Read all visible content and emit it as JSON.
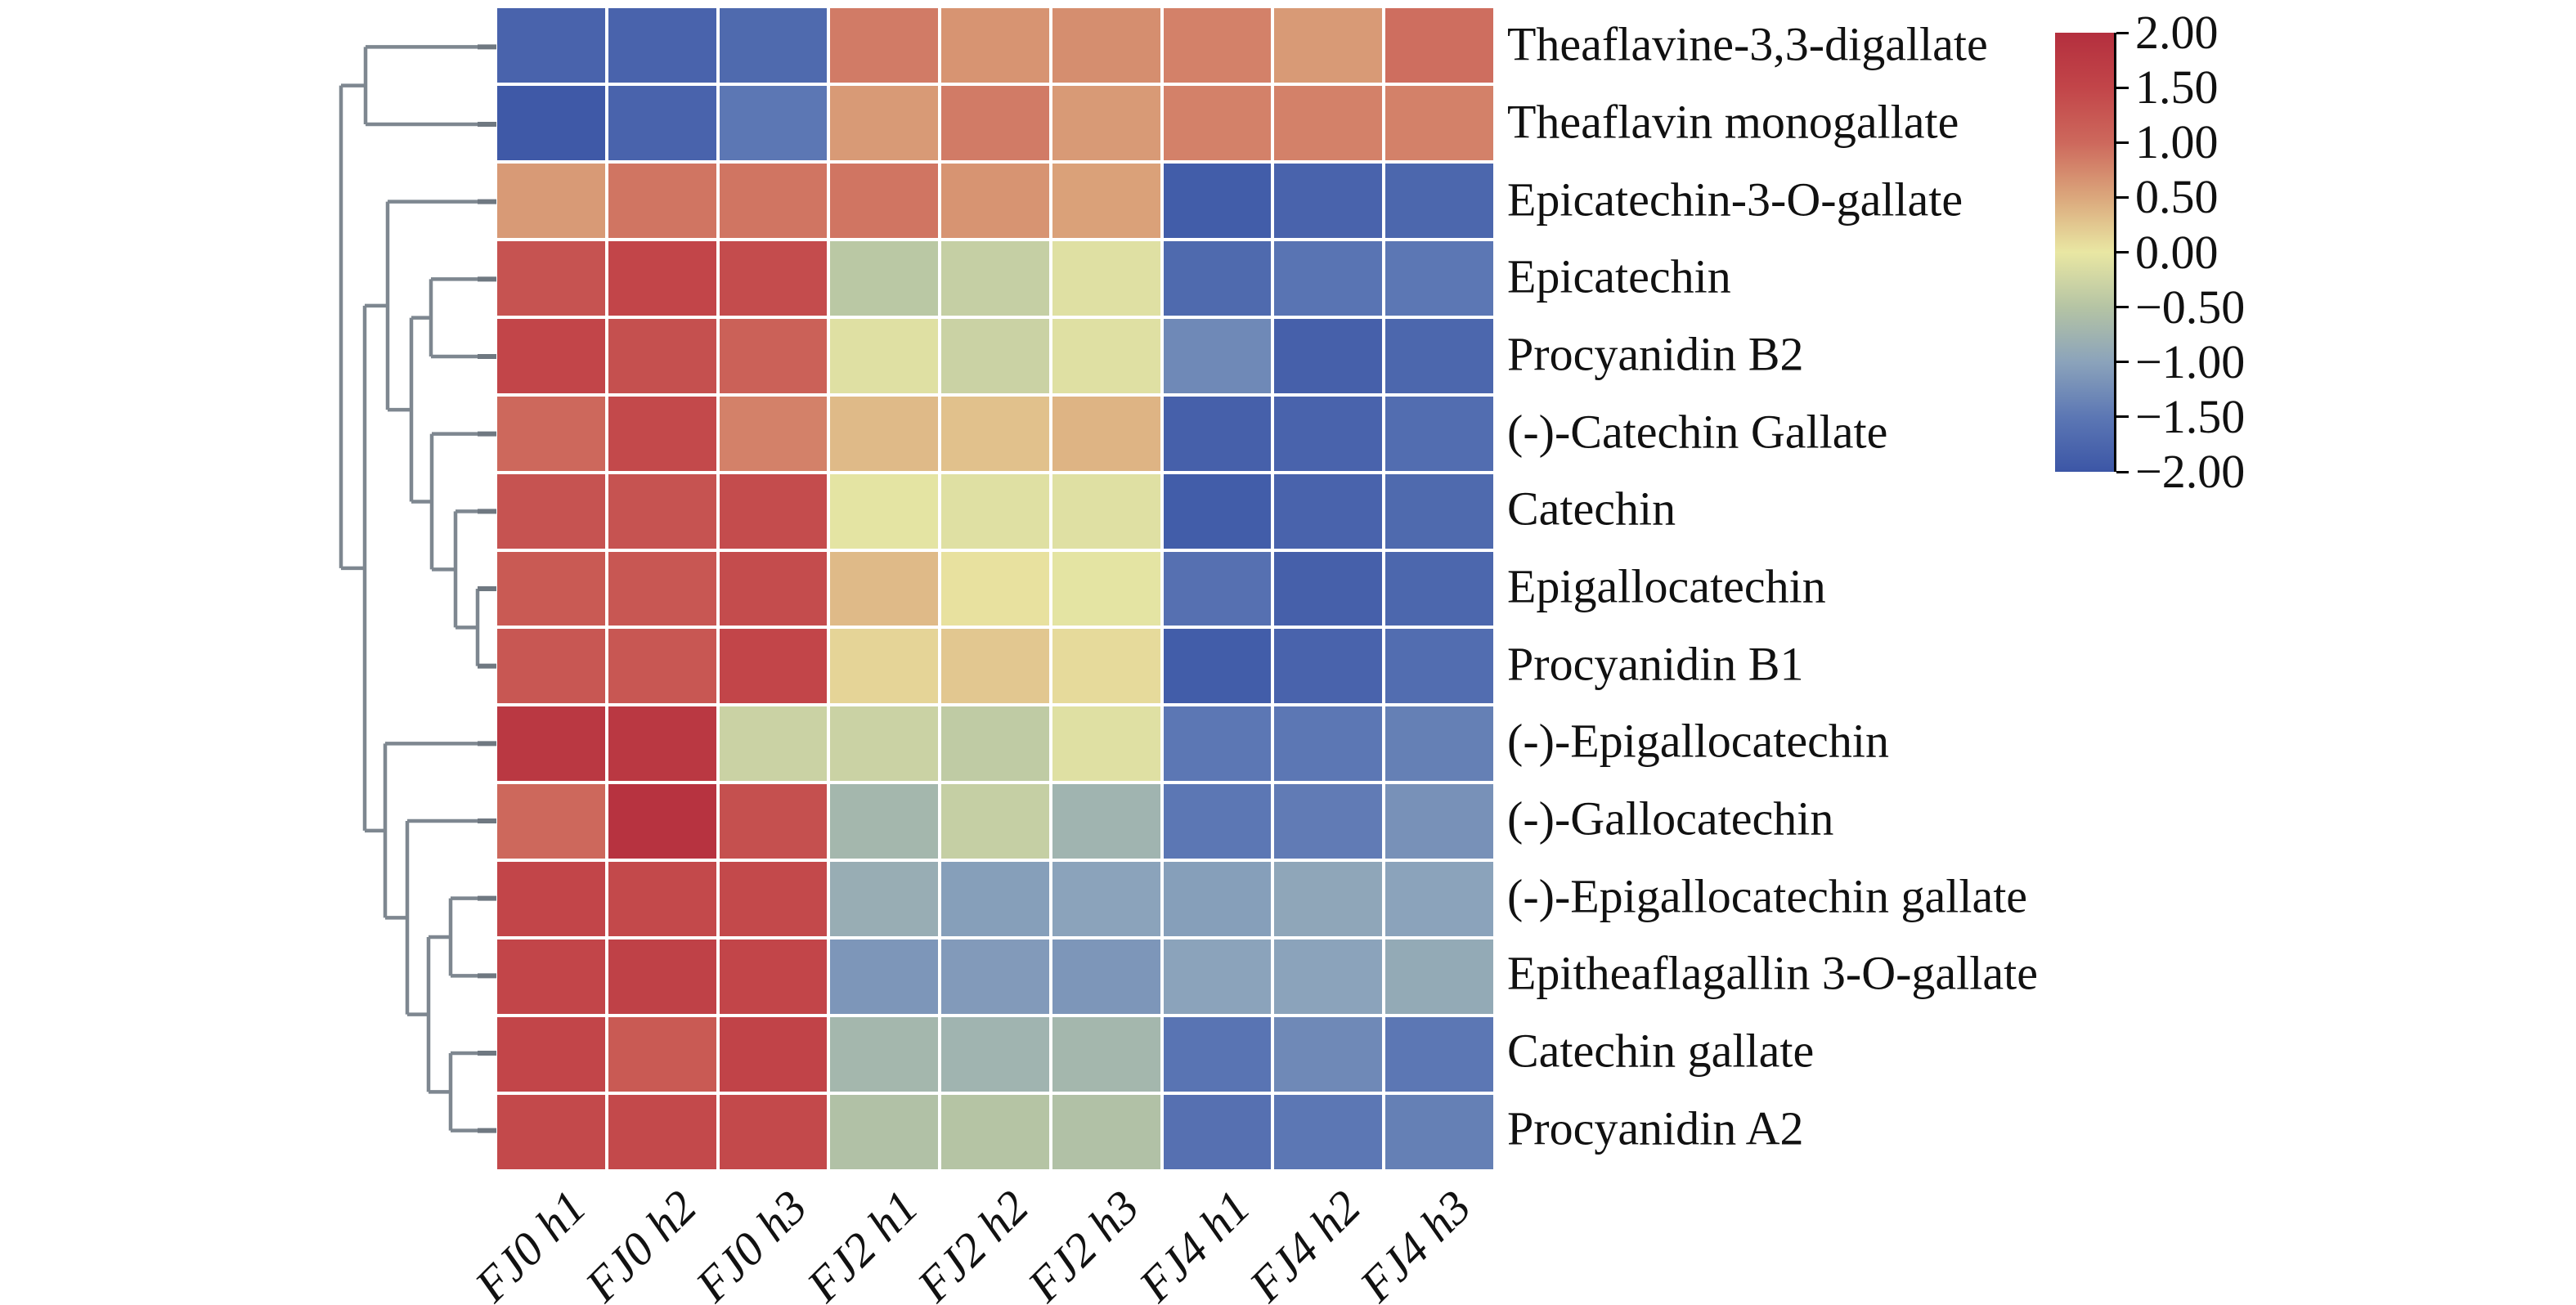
{
  "chart_data": {
    "type": "heatmap",
    "title": "",
    "xlabel": "",
    "ylabel": "",
    "grid": "white gaps between cells",
    "legend_position": "right",
    "columns": [
      "FJ0 h1",
      "FJ0 h2",
      "FJ0 h3",
      "FJ2 h1",
      "FJ2 h2",
      "FJ2 h3",
      "FJ4 h1",
      "FJ4 h2",
      "FJ4 h3"
    ],
    "rows": [
      "Theaflavine-3,3-digallate",
      "Theaflavin monogallate",
      "Epicatechin-3-O-gallate",
      "Epicatechin",
      "Procyanidin B2",
      "(-)-Catechin Gallate",
      "Catechin",
      "Epigallocatechin",
      "Procyanidin B1",
      "(-)-Epigallocatechin",
      "(-)-Gallocatechin",
      "(-)-Epigallocatechin gallate",
      "Epitheaflagallin 3-O-gallate",
      "Catechin gallate",
      "Procyanidin A2"
    ],
    "values": [
      [
        -1.8,
        -1.8,
        -1.7,
        0.85,
        0.65,
        0.7,
        0.8,
        0.6,
        0.95
      ],
      [
        -1.95,
        -1.8,
        -1.5,
        0.6,
        0.85,
        0.6,
        0.8,
        0.8,
        0.8
      ],
      [
        0.6,
        0.9,
        0.9,
        0.9,
        0.65,
        0.55,
        -1.9,
        -1.8,
        -1.75
      ],
      [
        1.3,
        1.5,
        1.4,
        -0.45,
        -0.35,
        -0.1,
        -1.7,
        -1.55,
        -1.5
      ],
      [
        1.5,
        1.35,
        1.1,
        -0.1,
        -0.3,
        -0.1,
        -1.3,
        -1.85,
        -1.75
      ],
      [
        1.0,
        1.45,
        0.8,
        0.35,
        0.3,
        0.4,
        -1.85,
        -1.8,
        -1.65
      ],
      [
        1.3,
        1.3,
        1.4,
        -0.05,
        -0.1,
        -0.1,
        -1.9,
        -1.8,
        -1.7
      ],
      [
        1.2,
        1.25,
        1.4,
        0.35,
        0.05,
        -0.05,
        -1.6,
        -1.85,
        -1.75
      ],
      [
        1.25,
        1.25,
        1.5,
        0.15,
        0.25,
        0.1,
        -1.9,
        -1.8,
        -1.65
      ],
      [
        1.8,
        1.8,
        -0.3,
        -0.3,
        -0.4,
        -0.1,
        -1.5,
        -1.5,
        -1.4
      ],
      [
        1.0,
        1.9,
        1.35,
        -0.7,
        -0.35,
        -0.75,
        -1.5,
        -1.45,
        -1.2
      ],
      [
        1.5,
        1.45,
        1.45,
        -0.85,
        -1.05,
        -1.0,
        -1.05,
        -0.95,
        -1.0
      ],
      [
        1.5,
        1.6,
        1.5,
        -1.15,
        -1.1,
        -1.15,
        -1.0,
        -1.0,
        -0.9
      ],
      [
        1.5,
        1.2,
        1.55,
        -0.7,
        -0.75,
        -0.7,
        -1.55,
        -1.3,
        -1.5
      ],
      [
        1.45,
        1.45,
        1.45,
        -0.55,
        -0.5,
        -0.55,
        -1.6,
        -1.5,
        -1.4
      ]
    ],
    "value_range": [
      -2,
      2
    ],
    "colormap_stops": [
      {
        "v": 2.0,
        "c": "#b42f3e"
      },
      {
        "v": 1.5,
        "c": "#c24549"
      },
      {
        "v": 1.0,
        "c": "#cd685c"
      },
      {
        "v": 0.5,
        "c": "#dba77c"
      },
      {
        "v": 0.0,
        "c": "#e9e7a3"
      },
      {
        "v": -0.5,
        "c": "#b5c4a4"
      },
      {
        "v": -1.0,
        "c": "#8ba3bb"
      },
      {
        "v": -1.5,
        "c": "#5c77b4"
      },
      {
        "v": -2.0,
        "c": "#3c56a6"
      }
    ],
    "colorbar_ticks": [
      {
        "label": "2.00",
        "value": 2.0
      },
      {
        "label": "1.50",
        "value": 1.5
      },
      {
        "label": "1.00",
        "value": 1.0
      },
      {
        "label": "0.50",
        "value": 0.5
      },
      {
        "label": "0.00",
        "value": 0.0
      },
      {
        "label": "−0.50",
        "value": -0.5
      },
      {
        "label": "−1.00",
        "value": -1.0
      },
      {
        "label": "−1.50",
        "value": -1.5
      },
      {
        "label": "−2.00",
        "value": -2.0
      }
    ],
    "dendrogram": {
      "orientation": "left",
      "line_color": "#7e8790",
      "leaf_tick_color": "#6f7881",
      "tree": {
        "d": 189,
        "children": [
          {
            "d": 159,
            "children": [
              {
                "leaf": 0
              },
              {
                "leaf": 1
              }
            ]
          },
          {
            "d": 160,
            "children": [
              {
                "d": 132,
                "children": [
                  {
                    "leaf": 2
                  },
                  {
                    "d": 103,
                    "children": [
                      {
                        "d": 79,
                        "children": [
                          {
                            "leaf": 3
                          },
                          {
                            "leaf": 4
                          }
                        ]
                      },
                      {
                        "d": 78,
                        "children": [
                          {
                            "leaf": 5
                          },
                          {
                            "d": 49,
                            "children": [
                              {
                                "leaf": 6
                              },
                              {
                                "d": 22,
                                "children": [
                                  {
                                    "leaf": 7
                                  },
                                  {
                                    "leaf": 8
                                  }
                                ]
                              }
                            ]
                          }
                        ]
                      }
                    ]
                  }
                ]
              },
              {
                "d": 135,
                "children": [
                  {
                    "leaf": 9
                  },
                  {
                    "d": 108,
                    "children": [
                      {
                        "leaf": 10
                      },
                      {
                        "d": 82,
                        "children": [
                          {
                            "d": 55,
                            "children": [
                              {
                                "leaf": 11
                              },
                              {
                                "leaf": 12
                              }
                            ]
                          },
                          {
                            "d": 55,
                            "children": [
                              {
                                "leaf": 13
                              },
                              {
                                "leaf": 14
                              }
                            ]
                          }
                        ]
                      }
                    ]
                  }
                ]
              }
            ]
          }
        ]
      }
    },
    "text_color": "#111111",
    "background_color": "#ffffff"
  }
}
